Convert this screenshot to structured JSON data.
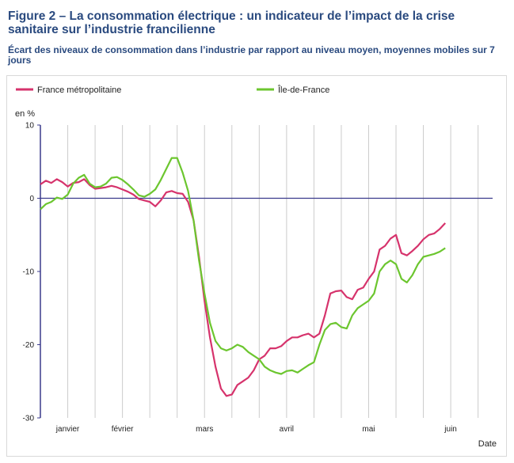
{
  "header": {
    "title": "Figure 2 – La consommation électrique : un indicateur de l’impact de la crise sanitaire sur l’industrie francilienne",
    "subtitle": "Écart des niveaux de consommation dans l’industrie par rapport au niveau moyen, moyennes mobiles sur 7 jours"
  },
  "colors": {
    "france": "#d6336c",
    "idf": "#6cc62f",
    "axis": "#3a3a8c",
    "grid": "#cccccc",
    "title": "#2a4a7f"
  },
  "chart_data": {
    "type": "line",
    "ylabel": "en %",
    "xlabel": "Date",
    "ylim": [
      -30,
      10
    ],
    "yticks": [
      10,
      0,
      -10,
      -20,
      -30
    ],
    "xlim": [
      0,
      163
    ],
    "months": [
      {
        "label": "janvier",
        "x": 10
      },
      {
        "label": "février",
        "x": 30
      },
      {
        "label": "mars",
        "x": 60
      },
      {
        "label": "avril",
        "x": 90
      },
      {
        "label": "mai",
        "x": 120
      },
      {
        "label": "juin",
        "x": 150
      }
    ],
    "gridlines_x": [
      0,
      10,
      20,
      30,
      40,
      50,
      60,
      70,
      80,
      90,
      100,
      110,
      120,
      130,
      140,
      150,
      160
    ],
    "legend_position": "top",
    "series": [
      {
        "name": "France métropolitaine",
        "color": "#d6336c",
        "points": [
          [
            0,
            1.9
          ],
          [
            2,
            2.4
          ],
          [
            4,
            2.1
          ],
          [
            6,
            2.6
          ],
          [
            8,
            2.2
          ],
          [
            10,
            1.6
          ],
          [
            12,
            2.1
          ],
          [
            14,
            2.2
          ],
          [
            16,
            2.6
          ],
          [
            18,
            1.8
          ],
          [
            20,
            1.3
          ],
          [
            22,
            1.4
          ],
          [
            24,
            1.5
          ],
          [
            26,
            1.7
          ],
          [
            28,
            1.5
          ],
          [
            30,
            1.2
          ],
          [
            32,
            0.9
          ],
          [
            34,
            0.5
          ],
          [
            36,
            -0.1
          ],
          [
            38,
            -0.3
          ],
          [
            40,
            -0.5
          ],
          [
            42,
            -1.1
          ],
          [
            44,
            -0.3
          ],
          [
            46,
            0.8
          ],
          [
            48,
            1
          ],
          [
            50,
            0.7
          ],
          [
            52,
            0.6
          ],
          [
            54,
            -0.5
          ],
          [
            56,
            -3
          ],
          [
            58,
            -8
          ],
          [
            60,
            -14
          ],
          [
            62,
            -19
          ],
          [
            64,
            -23
          ],
          [
            66,
            -26
          ],
          [
            68,
            -27
          ],
          [
            70,
            -26.8
          ],
          [
            72,
            -25.5
          ],
          [
            74,
            -25
          ],
          [
            76,
            -24.5
          ],
          [
            78,
            -23.5
          ],
          [
            80,
            -22
          ],
          [
            82,
            -21.5
          ],
          [
            84,
            -20.5
          ],
          [
            86,
            -20.5
          ],
          [
            88,
            -20.2
          ],
          [
            90,
            -19.5
          ],
          [
            92,
            -19
          ],
          [
            94,
            -19
          ],
          [
            96,
            -18.7
          ],
          [
            98,
            -18.5
          ],
          [
            100,
            -19
          ],
          [
            102,
            -18.5
          ],
          [
            104,
            -16
          ],
          [
            106,
            -13
          ],
          [
            108,
            -12.7
          ],
          [
            110,
            -12.6
          ],
          [
            112,
            -13.5
          ],
          [
            114,
            -13.8
          ],
          [
            116,
            -12.5
          ],
          [
            118,
            -12.2
          ],
          [
            120,
            -11
          ],
          [
            122,
            -10
          ],
          [
            124,
            -7
          ],
          [
            126,
            -6.5
          ],
          [
            128,
            -5.5
          ],
          [
            130,
            -5
          ],
          [
            132,
            -7.5
          ],
          [
            134,
            -7.8
          ],
          [
            136,
            -7.2
          ],
          [
            138,
            -6.5
          ],
          [
            140,
            -5.6
          ],
          [
            142,
            -5
          ],
          [
            144,
            -4.8
          ],
          [
            146,
            -4.2
          ],
          [
            148,
            -3.4
          ]
        ]
      },
      {
        "name": "Île-de-France",
        "color": "#6cc62f",
        "points": [
          [
            0,
            -1.5
          ],
          [
            2,
            -0.8
          ],
          [
            4,
            -0.5
          ],
          [
            6,
            0.1
          ],
          [
            8,
            -0.1
          ],
          [
            10,
            0.5
          ],
          [
            12,
            2
          ],
          [
            14,
            2.8
          ],
          [
            16,
            3.2
          ],
          [
            18,
            2
          ],
          [
            20,
            1.5
          ],
          [
            22,
            1.6
          ],
          [
            24,
            2
          ],
          [
            26,
            2.8
          ],
          [
            28,
            2.9
          ],
          [
            30,
            2.5
          ],
          [
            32,
            1.9
          ],
          [
            34,
            1.2
          ],
          [
            36,
            0.4
          ],
          [
            38,
            0.2
          ],
          [
            40,
            0.6
          ],
          [
            42,
            1.2
          ],
          [
            44,
            2.5
          ],
          [
            46,
            4
          ],
          [
            48,
            5.5
          ],
          [
            50,
            5.5
          ],
          [
            52,
            3.5
          ],
          [
            54,
            1
          ],
          [
            56,
            -3
          ],
          [
            58,
            -8.5
          ],
          [
            60,
            -13
          ],
          [
            62,
            -17
          ],
          [
            64,
            -19.5
          ],
          [
            66,
            -20.5
          ],
          [
            68,
            -20.8
          ],
          [
            70,
            -20.5
          ],
          [
            72,
            -20
          ],
          [
            74,
            -20.3
          ],
          [
            76,
            -21
          ],
          [
            78,
            -21.5
          ],
          [
            80,
            -22
          ],
          [
            82,
            -23
          ],
          [
            84,
            -23.5
          ],
          [
            86,
            -23.8
          ],
          [
            88,
            -24
          ],
          [
            90,
            -23.6
          ],
          [
            92,
            -23.5
          ],
          [
            94,
            -23.8
          ],
          [
            96,
            -23.3
          ],
          [
            98,
            -22.8
          ],
          [
            100,
            -22.4
          ],
          [
            102,
            -20
          ],
          [
            104,
            -18
          ],
          [
            106,
            -17.2
          ],
          [
            108,
            -17
          ],
          [
            110,
            -17.6
          ],
          [
            112,
            -17.8
          ],
          [
            114,
            -16
          ],
          [
            116,
            -15
          ],
          [
            118,
            -14.5
          ],
          [
            120,
            -14
          ],
          [
            122,
            -13
          ],
          [
            124,
            -10
          ],
          [
            126,
            -9
          ],
          [
            128,
            -8.5
          ],
          [
            130,
            -9
          ],
          [
            132,
            -11
          ],
          [
            134,
            -11.5
          ],
          [
            136,
            -10.5
          ],
          [
            138,
            -9
          ],
          [
            140,
            -8
          ],
          [
            142,
            -7.8
          ],
          [
            144,
            -7.6
          ],
          [
            146,
            -7.3
          ],
          [
            148,
            -6.8
          ]
        ]
      }
    ]
  }
}
